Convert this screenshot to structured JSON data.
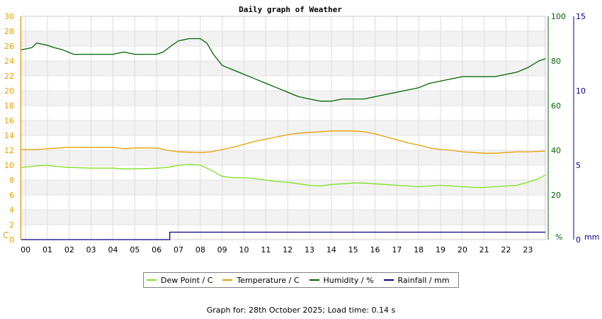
{
  "chart_data": {
    "type": "line",
    "title": "Daily graph of Weather",
    "x_tick_labels": [
      "00",
      "01",
      "02",
      "03",
      "04",
      "05",
      "06",
      "07",
      "08",
      "09",
      "10",
      "11",
      "12",
      "13",
      "14",
      "15",
      "16",
      "17",
      "18",
      "19",
      "20",
      "21",
      "22",
      "23"
    ],
    "xlim": [
      -0.2,
      23.8
    ],
    "axes": {
      "temperature": {
        "ylim": [
          0,
          30
        ],
        "ticks": [
          0,
          2,
          4,
          6,
          8,
          10,
          12,
          14,
          16,
          18,
          20,
          22,
          24,
          26,
          28,
          30
        ],
        "unit_label": "C",
        "color": "#e8a000"
      },
      "humidity": {
        "ylim": [
          0,
          100
        ],
        "ticks": [
          20,
          40,
          60,
          80,
          100
        ],
        "unit_label": "%",
        "color": "#006400"
      },
      "rainfall": {
        "ylim": [
          0,
          15
        ],
        "ticks": [
          0,
          5,
          10,
          15
        ],
        "unit_label": "mm",
        "color": "#00008b"
      }
    },
    "series": [
      {
        "name": "Dew Point / C",
        "axis": "temperature",
        "color": "#80e020",
        "x": [
          -0.2,
          0.5,
          0.9,
          1.5,
          2.0,
          3.0,
          4.0,
          4.5,
          5.0,
          6.0,
          6.5,
          7.0,
          7.5,
          8.0,
          8.5,
          9.0,
          9.5,
          10.0,
          10.5,
          11.0,
          11.5,
          12.0,
          12.5,
          13.0,
          13.5,
          14.0,
          14.5,
          15.0,
          15.5,
          16.0,
          16.5,
          17.0,
          17.5,
          18.0,
          18.5,
          19.0,
          19.5,
          20.0,
          20.5,
          21.0,
          21.5,
          22.0,
          22.5,
          23.0,
          23.5,
          23.8
        ],
        "y": [
          9.7,
          9.9,
          10.0,
          9.8,
          9.7,
          9.6,
          9.6,
          9.5,
          9.5,
          9.6,
          9.7,
          10.0,
          10.1,
          10.0,
          9.3,
          8.5,
          8.3,
          8.3,
          8.2,
          8.0,
          7.8,
          7.7,
          7.5,
          7.3,
          7.2,
          7.4,
          7.5,
          7.6,
          7.6,
          7.5,
          7.4,
          7.3,
          7.2,
          7.1,
          7.2,
          7.3,
          7.2,
          7.1,
          7.0,
          7.0,
          7.1,
          7.2,
          7.3,
          7.7,
          8.2,
          8.7
        ]
      },
      {
        "name": "Temperature / C",
        "axis": "temperature",
        "color": "#e8a000",
        "x": [
          -0.2,
          0.5,
          1.0,
          2.0,
          3.0,
          4.0,
          4.5,
          5.0,
          6.0,
          6.5,
          7.0,
          8.0,
          8.5,
          9.0,
          9.5,
          10.0,
          10.5,
          11.0,
          11.5,
          12.0,
          12.5,
          13.0,
          13.5,
          14.0,
          14.5,
          15.0,
          15.5,
          16.0,
          16.5,
          17.0,
          17.5,
          18.0,
          18.5,
          19.0,
          19.5,
          20.0,
          20.5,
          21.0,
          21.5,
          22.0,
          22.5,
          23.0,
          23.8
        ],
        "y": [
          12.1,
          12.1,
          12.2,
          12.4,
          12.4,
          12.4,
          12.2,
          12.3,
          12.3,
          12.0,
          11.8,
          11.7,
          11.8,
          12.1,
          12.4,
          12.8,
          13.2,
          13.5,
          13.8,
          14.1,
          14.3,
          14.4,
          14.5,
          14.6,
          14.6,
          14.6,
          14.5,
          14.2,
          13.8,
          13.4,
          13.0,
          12.7,
          12.3,
          12.1,
          12.0,
          11.8,
          11.7,
          11.6,
          11.6,
          11.7,
          11.8,
          11.8,
          11.9
        ]
      },
      {
        "name": "Humidity / %",
        "axis": "humidity",
        "color": "#006400",
        "x": [
          -0.2,
          0.3,
          0.5,
          1.0,
          1.3,
          1.7,
          2.2,
          3.0,
          4.0,
          4.5,
          5.0,
          6.0,
          6.3,
          6.7,
          7.0,
          7.5,
          8.0,
          8.3,
          8.6,
          9.0,
          9.5,
          10.0,
          10.5,
          11.0,
          11.5,
          12.0,
          12.5,
          13.0,
          13.5,
          14.0,
          14.5,
          15.0,
          15.5,
          16.0,
          16.5,
          17.0,
          17.5,
          18.0,
          18.5,
          19.0,
          19.5,
          20.0,
          20.5,
          21.0,
          21.5,
          22.0,
          22.5,
          23.0,
          23.5,
          23.8
        ],
        "y": [
          85,
          86,
          88,
          87,
          86,
          85,
          83,
          83,
          83,
          84,
          83,
          83,
          84,
          87,
          89,
          90,
          90,
          88,
          83,
          78,
          76,
          74,
          72,
          70,
          68,
          66,
          64,
          63,
          62,
          62,
          63,
          63,
          63,
          64,
          65,
          66,
          67,
          68,
          70,
          71,
          72,
          73,
          73,
          73,
          73,
          74,
          75,
          77,
          80,
          81
        ]
      },
      {
        "name": "Rainfall / mm",
        "axis": "rainfall",
        "color": "#00008b",
        "x": [
          -0.2,
          6.6,
          6.6,
          6.8,
          6.8,
          23.8
        ],
        "y": [
          0,
          0,
          0.5,
          0.5,
          0.5,
          0.5
        ]
      }
    ]
  },
  "footer": "Graph for: 28th October 2025; Load time: 0.14 s"
}
